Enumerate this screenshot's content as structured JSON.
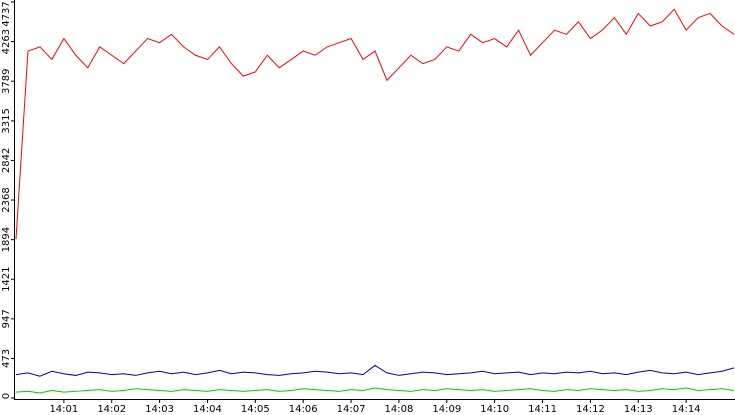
{
  "chart_data": {
    "type": "line",
    "x": [
      0,
      0.25,
      0.5,
      0.75,
      1,
      1.25,
      1.5,
      1.75,
      2,
      2.25,
      2.5,
      2.75,
      3,
      3.25,
      3.5,
      3.75,
      4,
      4.25,
      4.5,
      4.75,
      5,
      5.25,
      5.5,
      5.75,
      6,
      6.25,
      6.5,
      6.75,
      7,
      7.25,
      7.5,
      7.75,
      8,
      8.25,
      8.5,
      8.75,
      9,
      9.25,
      9.5,
      9.75,
      10,
      10.25,
      10.5,
      10.75,
      11,
      11.25,
      11.5,
      11.75,
      12,
      12.25,
      12.5,
      12.75,
      13,
      13.25,
      13.5,
      13.75,
      14,
      14.25,
      14.5,
      14.75,
      15
    ],
    "series": [
      {
        "color": "#ff0000",
        "values": [
          1900,
          4150,
          4200,
          4050,
          4300,
          4100,
          3950,
          4200,
          4100,
          4000,
          4150,
          4300,
          4250,
          4350,
          4200,
          4100,
          4050,
          4200,
          4000,
          3850,
          3900,
          4100,
          3950,
          4050,
          4150,
          4100,
          4200,
          4250,
          4300,
          4050,
          4150,
          3800,
          3950,
          4100,
          4000,
          4050,
          4200,
          4150,
          4350,
          4250,
          4300,
          4200,
          4400,
          4100,
          4250,
          4400,
          4350,
          4500,
          4300,
          4400,
          4550,
          4350,
          4600,
          4450,
          4500,
          4650,
          4400,
          4550,
          4600,
          4450,
          4350
        ]
      },
      {
        "color": "#0000aa",
        "values": [
          280,
          300,
          260,
          320,
          290,
          270,
          310,
          300,
          280,
          290,
          270,
          300,
          320,
          290,
          310,
          280,
          300,
          330,
          290,
          310,
          300,
          280,
          270,
          290,
          300,
          320,
          310,
          290,
          300,
          280,
          390,
          300,
          270,
          290,
          310,
          300,
          280,
          290,
          300,
          320,
          290,
          300,
          310,
          280,
          300,
          290,
          310,
          300,
          320,
          290,
          300,
          280,
          310,
          330,
          300,
          290,
          310,
          280,
          300,
          320,
          360
        ]
      },
      {
        "color": "#00cc00",
        "values": [
          70,
          80,
          60,
          90,
          70,
          80,
          90,
          100,
          80,
          90,
          110,
          100,
          90,
          80,
          100,
          90,
          80,
          100,
          90,
          80,
          90,
          100,
          80,
          90,
          110,
          100,
          90,
          80,
          100,
          90,
          120,
          100,
          90,
          80,
          100,
          90,
          110,
          100,
          90,
          100,
          80,
          90,
          100,
          110,
          90,
          80,
          100,
          90,
          110,
          100,
          90,
          100,
          80,
          90,
          110,
          100,
          120,
          90,
          100,
          110,
          90
        ]
      }
    ],
    "xlim": [
      0,
      15
    ],
    "xticks": [
      {
        "value": 1,
        "label": "14:01"
      },
      {
        "value": 2,
        "label": "14:02"
      },
      {
        "value": 3,
        "label": "14:03"
      },
      {
        "value": 4,
        "label": "14:04"
      },
      {
        "value": 5,
        "label": "14:05"
      },
      {
        "value": 6,
        "label": "14:06"
      },
      {
        "value": 7,
        "label": "14:07"
      },
      {
        "value": 8,
        "label": "14:08"
      },
      {
        "value": 9,
        "label": "14:09"
      },
      {
        "value": 10,
        "label": "14:10"
      },
      {
        "value": 11,
        "label": "14:11"
      },
      {
        "value": 12,
        "label": "14:12"
      },
      {
        "value": 13,
        "label": "14:13"
      },
      {
        "value": 14,
        "label": "14:14"
      }
    ],
    "ylim": [
      0,
      4737
    ],
    "yticks": [
      0,
      473,
      947,
      1421,
      1894,
      2368,
      2842,
      3315,
      3789,
      4263,
      4737
    ]
  }
}
